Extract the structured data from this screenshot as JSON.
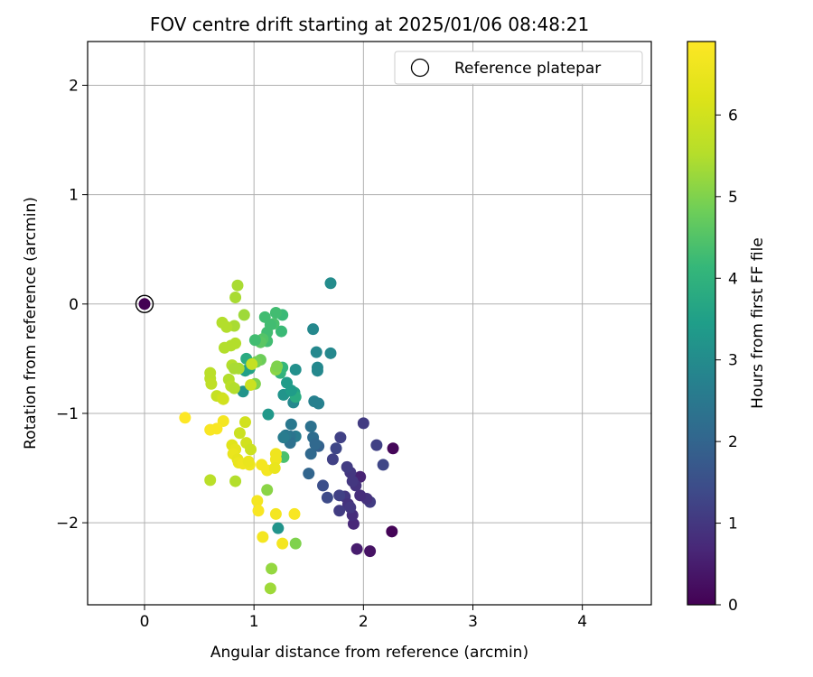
{
  "chart_data": {
    "type": "scatter",
    "title": "FOV centre drift starting at 2025/01/06 08:48:21",
    "xlabel": "Angular distance from reference (arcmin)",
    "ylabel": "Rotation from reference (arcmin)",
    "xlim": [
      -0.52,
      4.63
    ],
    "ylim": [
      -2.75,
      2.4
    ],
    "xticks": [
      0,
      1,
      2,
      3,
      4
    ],
    "yticks": [
      -2,
      -1,
      0,
      1,
      2
    ],
    "grid": true,
    "legend": {
      "position": "top-right",
      "entries": [
        "Reference platepar"
      ]
    },
    "colorbar": {
      "label": "Hours from first FF file",
      "range": [
        0,
        6.9
      ],
      "ticks": [
        0,
        1,
        2,
        3,
        4,
        5,
        6
      ],
      "colormap": "viridis"
    },
    "reference_point": {
      "x": 0,
      "y": 0,
      "c": 0
    },
    "points": [
      {
        "x": 2.27,
        "y": -1.32,
        "c": 0.1
      },
      {
        "x": 2.26,
        "y": -2.08,
        "c": 0.05
      },
      {
        "x": 2.06,
        "y": -2.26,
        "c": 0.3
      },
      {
        "x": 1.94,
        "y": -2.24,
        "c": 0.5
      },
      {
        "x": 1.91,
        "y": -2.01,
        "c": 0.7
      },
      {
        "x": 1.97,
        "y": -1.58,
        "c": 0.6
      },
      {
        "x": 2.0,
        "y": -1.09,
        "c": 1.1
      },
      {
        "x": 2.12,
        "y": -1.29,
        "c": 1.2
      },
      {
        "x": 2.18,
        "y": -1.47,
        "c": 1.3
      },
      {
        "x": 2.06,
        "y": -1.81,
        "c": 1.1
      },
      {
        "x": 2.03,
        "y": -1.78,
        "c": 0.9
      },
      {
        "x": 1.97,
        "y": -1.75,
        "c": 0.8
      },
      {
        "x": 1.93,
        "y": -1.66,
        "c": 0.9
      },
      {
        "x": 1.9,
        "y": -1.62,
        "c": 1.0
      },
      {
        "x": 1.88,
        "y": -1.54,
        "c": 1.0
      },
      {
        "x": 1.85,
        "y": -1.49,
        "c": 1.1
      },
      {
        "x": 1.83,
        "y": -1.76,
        "c": 1.0
      },
      {
        "x": 1.86,
        "y": -1.83,
        "c": 0.9
      },
      {
        "x": 1.9,
        "y": -1.93,
        "c": 0.8
      },
      {
        "x": 1.88,
        "y": -1.86,
        "c": 1.0
      },
      {
        "x": 1.79,
        "y": -1.22,
        "c": 1.2
      },
      {
        "x": 1.75,
        "y": -1.32,
        "c": 1.3
      },
      {
        "x": 1.72,
        "y": -1.42,
        "c": 1.2
      },
      {
        "x": 1.78,
        "y": -1.75,
        "c": 1.2
      },
      {
        "x": 1.78,
        "y": -1.89,
        "c": 1.1
      },
      {
        "x": 1.67,
        "y": -1.77,
        "c": 1.4
      },
      {
        "x": 1.63,
        "y": -1.66,
        "c": 1.5
      },
      {
        "x": 1.59,
        "y": -1.3,
        "c": 1.9
      },
      {
        "x": 1.54,
        "y": -1.22,
        "c": 2.2
      },
      {
        "x": 1.56,
        "y": -1.28,
        "c": 2.1
      },
      {
        "x": 1.52,
        "y": -1.12,
        "c": 2.3
      },
      {
        "x": 1.52,
        "y": -1.37,
        "c": 2.1
      },
      {
        "x": 1.5,
        "y": -1.55,
        "c": 2.0
      },
      {
        "x": 1.7,
        "y": 0.19,
        "c": 3.0
      },
      {
        "x": 1.7,
        "y": -0.45,
        "c": 2.9
      },
      {
        "x": 1.57,
        "y": -0.44,
        "c": 2.9
      },
      {
        "x": 1.54,
        "y": -0.23,
        "c": 2.9
      },
      {
        "x": 1.58,
        "y": -0.58,
        "c": 2.9
      },
      {
        "x": 1.58,
        "y": -0.61,
        "c": 2.9
      },
      {
        "x": 1.55,
        "y": -0.89,
        "c": 2.7
      },
      {
        "x": 1.59,
        "y": -0.91,
        "c": 2.7
      },
      {
        "x": 1.38,
        "y": -0.6,
        "c": 3.1
      },
      {
        "x": 1.38,
        "y": -1.21,
        "c": 2.6
      },
      {
        "x": 1.34,
        "y": -1.1,
        "c": 2.5
      },
      {
        "x": 1.33,
        "y": -1.21,
        "c": 2.4
      },
      {
        "x": 1.33,
        "y": -1.27,
        "c": 2.3
      },
      {
        "x": 1.29,
        "y": -1.2,
        "c": 2.5
      },
      {
        "x": 1.27,
        "y": -1.22,
        "c": 2.6
      },
      {
        "x": 1.36,
        "y": -0.9,
        "c": 2.9
      },
      {
        "x": 1.35,
        "y": -0.8,
        "c": 3.3
      },
      {
        "x": 1.37,
        "y": -0.81,
        "c": 3.6
      },
      {
        "x": 1.38,
        "y": -0.85,
        "c": 3.8
      },
      {
        "x": 1.27,
        "y": -0.83,
        "c": 3.2
      },
      {
        "x": 1.34,
        "y": -0.79,
        "c": 3.4
      },
      {
        "x": 1.3,
        "y": -0.72,
        "c": 3.4
      },
      {
        "x": 1.24,
        "y": -0.63,
        "c": 4.0
      },
      {
        "x": 1.26,
        "y": -0.58,
        "c": 4.1
      },
      {
        "x": 1.25,
        "y": -0.25,
        "c": 4.2
      },
      {
        "x": 1.26,
        "y": -0.1,
        "c": 4.2
      },
      {
        "x": 1.2,
        "y": -0.08,
        "c": 4.3
      },
      {
        "x": 1.18,
        "y": -0.18,
        "c": 4.4
      },
      {
        "x": 1.15,
        "y": -0.19,
        "c": 4.3
      },
      {
        "x": 1.1,
        "y": -0.12,
        "c": 4.3
      },
      {
        "x": 1.12,
        "y": -0.26,
        "c": 4.3
      },
      {
        "x": 1.12,
        "y": -0.34,
        "c": 4.3
      },
      {
        "x": 1.08,
        "y": -0.32,
        "c": 4.5
      },
      {
        "x": 1.06,
        "y": -0.35,
        "c": 4.6
      },
      {
        "x": 1.01,
        "y": -0.33,
        "c": 4.3
      },
      {
        "x": 0.93,
        "y": -0.5,
        "c": 3.8
      },
      {
        "x": 0.96,
        "y": -0.59,
        "c": 3.6
      },
      {
        "x": 0.92,
        "y": -0.61,
        "c": 3.5
      },
      {
        "x": 0.9,
        "y": -0.8,
        "c": 3.2
      },
      {
        "x": 1.06,
        "y": -0.51,
        "c": 4.8
      },
      {
        "x": 1.02,
        "y": -0.53,
        "c": 4.9
      },
      {
        "x": 1.01,
        "y": -0.73,
        "c": 5.0
      },
      {
        "x": 1.2,
        "y": -0.6,
        "c": 5.1
      },
      {
        "x": 1.21,
        "y": -0.57,
        "c": 5.0
      },
      {
        "x": 1.13,
        "y": -1.01,
        "c": 3.3
      },
      {
        "x": 1.27,
        "y": -1.4,
        "c": 4.4
      },
      {
        "x": 1.22,
        "y": -2.05,
        "c": 3.2
      },
      {
        "x": 1.38,
        "y": -2.19,
        "c": 5.0
      },
      {
        "x": 1.12,
        "y": -1.7,
        "c": 5.1
      },
      {
        "x": 1.16,
        "y": -2.42,
        "c": 5.2
      },
      {
        "x": 1.15,
        "y": -2.6,
        "c": 5.3
      },
      {
        "x": 0.85,
        "y": 0.17,
        "c": 5.4
      },
      {
        "x": 0.83,
        "y": 0.06,
        "c": 5.4
      },
      {
        "x": 0.91,
        "y": -0.1,
        "c": 5.3
      },
      {
        "x": 0.82,
        "y": -0.2,
        "c": 5.4
      },
      {
        "x": 0.71,
        "y": -0.17,
        "c": 5.5
      },
      {
        "x": 0.75,
        "y": -0.21,
        "c": 5.5
      },
      {
        "x": 0.83,
        "y": -0.36,
        "c": 5.5
      },
      {
        "x": 0.79,
        "y": -0.38,
        "c": 5.5
      },
      {
        "x": 0.73,
        "y": -0.4,
        "c": 5.5
      },
      {
        "x": 0.8,
        "y": -0.56,
        "c": 5.5
      },
      {
        "x": 0.82,
        "y": -0.59,
        "c": 5.4
      },
      {
        "x": 0.86,
        "y": -0.59,
        "c": 5.4
      },
      {
        "x": 0.77,
        "y": -0.69,
        "c": 5.5
      },
      {
        "x": 0.6,
        "y": -0.63,
        "c": 5.6
      },
      {
        "x": 0.6,
        "y": -0.68,
        "c": 5.6
      },
      {
        "x": 0.61,
        "y": -0.73,
        "c": 5.7
      },
      {
        "x": 0.79,
        "y": -0.75,
        "c": 5.6
      },
      {
        "x": 0.82,
        "y": -0.77,
        "c": 5.5
      },
      {
        "x": 0.98,
        "y": -0.55,
        "c": 5.8
      },
      {
        "x": 0.97,
        "y": -0.74,
        "c": 5.9
      },
      {
        "x": 0.66,
        "y": -0.84,
        "c": 5.8
      },
      {
        "x": 0.71,
        "y": -0.86,
        "c": 5.9
      },
      {
        "x": 0.72,
        "y": -0.87,
        "c": 6.0
      },
      {
        "x": 0.6,
        "y": -1.61,
        "c": 5.6
      },
      {
        "x": 0.83,
        "y": -1.62,
        "c": 5.5
      },
      {
        "x": 0.92,
        "y": -1.08,
        "c": 6.0
      },
      {
        "x": 0.87,
        "y": -1.18,
        "c": 5.9
      },
      {
        "x": 0.93,
        "y": -1.27,
        "c": 6.0
      },
      {
        "x": 0.97,
        "y": -1.33,
        "c": 5.9
      },
      {
        "x": 0.8,
        "y": -1.29,
        "c": 6.3
      },
      {
        "x": 0.83,
        "y": -1.33,
        "c": 6.4
      },
      {
        "x": 0.81,
        "y": -1.37,
        "c": 6.5
      },
      {
        "x": 0.85,
        "y": -1.42,
        "c": 6.4
      },
      {
        "x": 0.86,
        "y": -1.45,
        "c": 6.5
      },
      {
        "x": 0.9,
        "y": -1.46,
        "c": 6.6
      },
      {
        "x": 0.96,
        "y": -1.47,
        "c": 6.6
      },
      {
        "x": 0.95,
        "y": -1.44,
        "c": 6.5
      },
      {
        "x": 0.72,
        "y": -1.07,
        "c": 6.7
      },
      {
        "x": 0.66,
        "y": -1.14,
        "c": 6.8
      },
      {
        "x": 0.6,
        "y": -1.15,
        "c": 6.8
      },
      {
        "x": 0.37,
        "y": -1.04,
        "c": 6.9
      },
      {
        "x": 1.07,
        "y": -1.47,
        "c": 6.7
      },
      {
        "x": 1.12,
        "y": -1.52,
        "c": 6.7
      },
      {
        "x": 1.2,
        "y": -1.37,
        "c": 6.6
      },
      {
        "x": 1.2,
        "y": -1.42,
        "c": 6.6
      },
      {
        "x": 1.19,
        "y": -1.5,
        "c": 6.5
      },
      {
        "x": 1.03,
        "y": -1.8,
        "c": 6.7
      },
      {
        "x": 1.04,
        "y": -1.89,
        "c": 6.8
      },
      {
        "x": 1.2,
        "y": -1.92,
        "c": 6.7
      },
      {
        "x": 1.37,
        "y": -1.92,
        "c": 6.8
      },
      {
        "x": 1.08,
        "y": -2.13,
        "c": 6.7
      },
      {
        "x": 1.26,
        "y": -2.19,
        "c": 6.7
      },
      {
        "x": 0.0,
        "y": 0.0,
        "c": 0.0
      }
    ]
  }
}
